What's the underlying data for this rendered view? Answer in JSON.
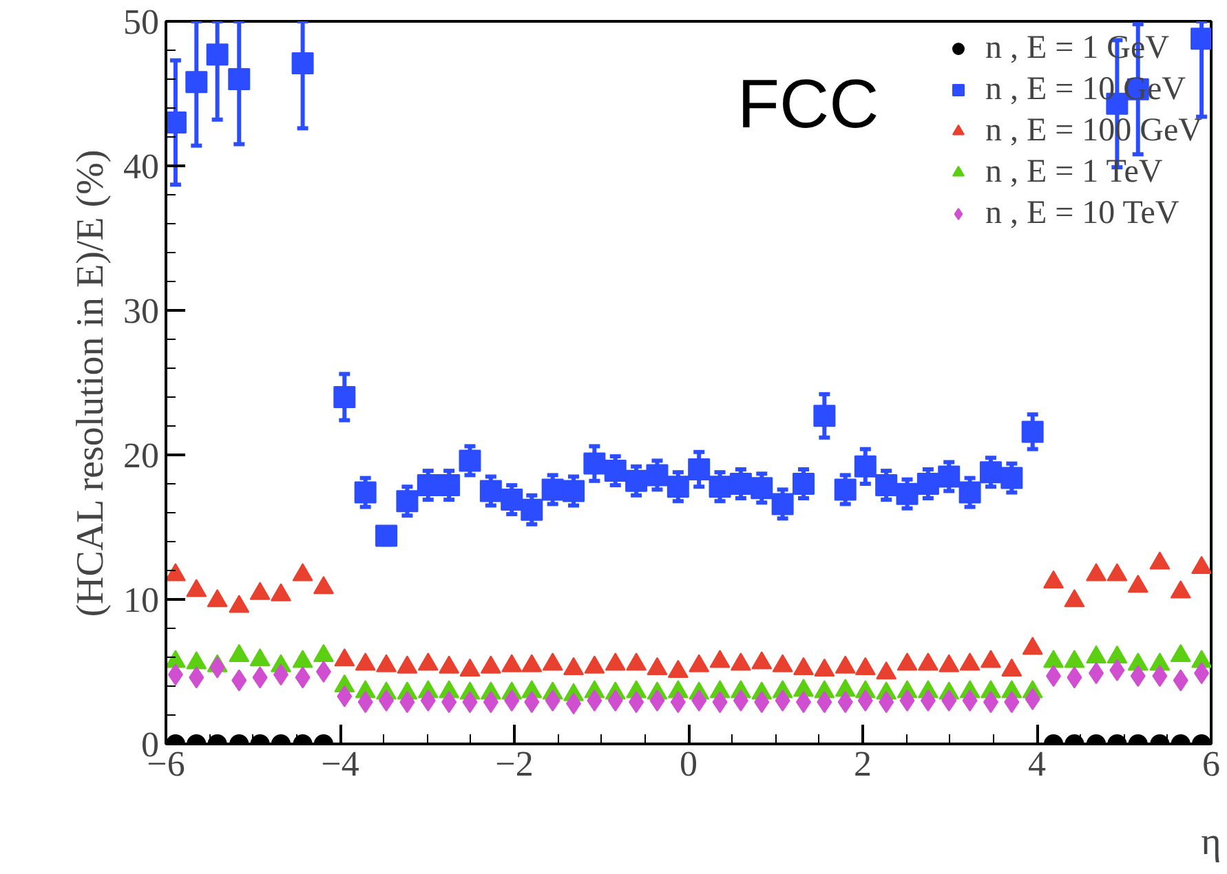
{
  "chart_data": {
    "type": "scatter",
    "xlabel": "η",
    "ylabel": "(HCAL resolution in E)/E (%)",
    "annotations": [
      "FCC"
    ],
    "x": [
      -5.89,
      -5.65,
      -5.41,
      -5.16,
      -4.92,
      -4.68,
      -4.43,
      -4.19,
      -3.95,
      -3.71,
      -3.47,
      -3.23,
      -2.99,
      -2.75,
      -2.51,
      -2.27,
      -2.03,
      -1.8,
      -1.56,
      -1.32,
      -1.08,
      -0.84,
      -0.6,
      -0.36,
      -0.12,
      0.12,
      0.36,
      0.6,
      0.84,
      1.08,
      1.32,
      1.56,
      1.8,
      2.03,
      2.27,
      2.51,
      2.75,
      2.99,
      3.23,
      3.47,
      3.71,
      3.95,
      4.19,
      4.43,
      4.68,
      4.92,
      5.16,
      5.41,
      5.65,
      5.89
    ],
    "xlim": [
      -6,
      6
    ],
    "xticks": [
      {
        "value": -6,
        "label": "−6"
      },
      {
        "value": -4,
        "label": "−4"
      },
      {
        "value": -2,
        "label": "−2"
      },
      0,
      2,
      4,
      6
    ],
    "ylim": [
      0,
      50
    ],
    "yticks": [
      0,
      10,
      20,
      30,
      40,
      50
    ],
    "grid": false,
    "legend": "top right",
    "series": [
      {
        "name": "n , E = 1 GeV",
        "color": "#000000",
        "marker": "circle",
        "values": [
          0,
          0,
          0,
          0,
          0,
          0,
          0,
          0,
          null,
          null,
          null,
          null,
          null,
          null,
          null,
          null,
          null,
          null,
          null,
          null,
          null,
          null,
          null,
          null,
          null,
          null,
          null,
          null,
          null,
          null,
          null,
          null,
          null,
          null,
          null,
          null,
          null,
          null,
          null,
          null,
          null,
          null,
          0,
          0,
          0,
          0,
          0,
          0,
          0,
          0
        ]
      },
      {
        "name": "n , E = 10 GeV",
        "color": "#2b4cff",
        "marker": "square",
        "values": [
          43.0,
          45.8,
          47.7,
          46.0,
          null,
          null,
          47.1,
          null,
          24.0,
          17.4,
          14.4,
          16.8,
          17.9,
          17.9,
          19.6,
          17.5,
          16.9,
          16.2,
          17.6,
          17.5,
          19.4,
          18.9,
          18.2,
          18.6,
          17.8,
          19.0,
          17.8,
          18.0,
          17.7,
          16.6,
          18.0,
          22.7,
          17.6,
          19.2,
          17.9,
          17.3,
          18.0,
          18.5,
          17.4,
          18.8,
          18.4,
          21.6,
          null,
          null,
          null,
          44.3,
          45.3,
          null,
          null,
          48.8
        ],
        "errors": [
          4.3,
          [
            41.4,
            50
          ],
          [
            43.2,
            50
          ],
          [
            41.5,
            50
          ],
          null,
          null,
          [
            42.6,
            50
          ],
          null,
          1.6,
          1.0,
          0.6,
          1.0,
          1.0,
          1.0,
          1.0,
          1.0,
          1.0,
          1.0,
          1.0,
          1.0,
          1.2,
          1.0,
          1.0,
          1.0,
          1.0,
          1.2,
          1.0,
          1.0,
          1.0,
          1.0,
          1.0,
          1.5,
          1.0,
          1.2,
          1.0,
          1.0,
          1.0,
          1.0,
          1.0,
          1.0,
          1.0,
          1.2,
          null,
          null,
          null,
          4.4,
          4.5,
          null,
          null,
          [
            43.4,
            50
          ]
        ]
      },
      {
        "name": "n , E = 100 GeV",
        "color": "#e8412f",
        "marker": "triangle",
        "values": [
          11.7,
          10.6,
          9.9,
          9.5,
          10.4,
          10.3,
          11.7,
          10.8,
          5.8,
          5.5,
          5.4,
          5.3,
          5.5,
          5.3,
          5.1,
          5.3,
          5.4,
          5.4,
          5.5,
          5.2,
          5.3,
          5.5,
          5.5,
          5.2,
          5.0,
          5.4,
          5.7,
          5.5,
          5.6,
          5.4,
          5.2,
          5.1,
          5.3,
          5.2,
          4.9,
          5.5,
          5.5,
          5.4,
          5.5,
          5.7,
          5.1,
          6.6,
          11.2,
          9.9,
          11.7,
          11.7,
          10.9,
          12.5,
          10.5,
          12.2
        ]
      },
      {
        "name": "n , E = 1 TeV",
        "color": "#5ccf12",
        "marker": "triangle",
        "values": [
          5.7,
          5.6,
          5.4,
          6.1,
          5.8,
          5.4,
          5.7,
          6.1,
          4.0,
          3.6,
          3.5,
          3.5,
          3.6,
          3.6,
          3.5,
          3.5,
          3.5,
          3.6,
          3.5,
          3.4,
          3.6,
          3.5,
          3.6,
          3.5,
          3.6,
          3.5,
          3.6,
          3.6,
          3.5,
          3.6,
          3.7,
          3.6,
          3.7,
          3.6,
          3.5,
          3.6,
          3.6,
          3.5,
          3.6,
          3.6,
          3.6,
          3.6,
          5.7,
          5.7,
          6.0,
          6.0,
          5.5,
          5.5,
          6.1,
          5.7
        ]
      },
      {
        "name": "n , E = 10 TeV",
        "color": "#d04fd0",
        "marker": "diamond",
        "values": [
          4.8,
          4.6,
          5.3,
          4.4,
          4.6,
          4.8,
          4.6,
          5.0,
          3.3,
          2.9,
          3.0,
          2.9,
          3.0,
          2.9,
          2.9,
          2.9,
          3.0,
          2.9,
          3.0,
          2.8,
          3.0,
          3.0,
          2.9,
          3.0,
          2.9,
          3.0,
          2.9,
          3.0,
          2.9,
          3.0,
          2.9,
          2.9,
          2.9,
          3.0,
          2.9,
          3.0,
          3.0,
          3.0,
          3.0,
          2.9,
          2.9,
          3.1,
          4.7,
          4.6,
          4.9,
          5.1,
          4.7,
          4.7,
          4.4,
          4.9
        ]
      }
    ]
  }
}
